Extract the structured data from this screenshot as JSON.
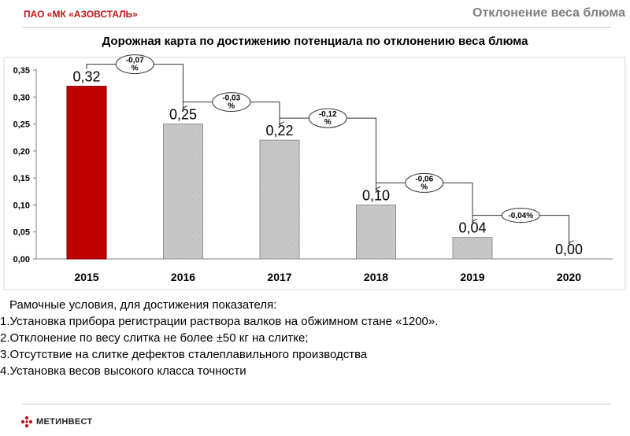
{
  "header": {
    "company": "ПАО «МК «АЗОВСТАЛЬ»",
    "title": "Отклонение веса блюма"
  },
  "chart_data": {
    "type": "bar",
    "title": "Дорожная карта по достижению потенциала по отклонению веса блюма",
    "categories": [
      "2015",
      "2016",
      "2017",
      "2018",
      "2019",
      "2020"
    ],
    "values": [
      0.32,
      0.25,
      0.22,
      0.1,
      0.04,
      0.0
    ],
    "data_labels": [
      "0,32",
      "0,25",
      "0,22",
      "0,10",
      "0,04",
      "0,00"
    ],
    "bar_colors": [
      "#c00000",
      "#c8c8c8",
      "#c8c8c8",
      "#c8c8c8",
      "#c8c8c8",
      "#c8c8c8"
    ],
    "yticks": [
      "0,00",
      "0,05",
      "0,10",
      "0,15",
      "0,20",
      "0,25",
      "0,30",
      "0,35"
    ],
    "ylim": [
      0,
      0.35
    ],
    "grid": false,
    "legend": "none",
    "step_labels": [
      {
        "from": "2015",
        "to": "2016",
        "value": -0.07,
        "text": "-0,07 %"
      },
      {
        "from": "2016",
        "to": "2017",
        "value": -0.03,
        "text": "-0,03 %"
      },
      {
        "from": "2017",
        "to": "2018",
        "value": -0.12,
        "text": "-0,12 %"
      },
      {
        "from": "2018",
        "to": "2019",
        "value": -0.06,
        "text": "-0,06 %"
      },
      {
        "from": "2019",
        "to": "2020",
        "value": -0.04,
        "text": "-0,04%"
      }
    ]
  },
  "conditions": {
    "lead": "Рамочные условия, для достижения показателя:",
    "items": [
      "1.Установка прибора регистрации раствора валков на обжимном стане «1200».",
      "2.Отклонение по весу слитка не более ±50 кг на слитке;",
      "3.Отсутствие на слитке дефектов сталеплавильного производства",
      "4.Установка весов высокого класса точности"
    ]
  },
  "footer": {
    "logo_text": "МЕТИНВЕСТ"
  },
  "colors": {
    "brand_red": "#c0151b",
    "highlight_bar": "#c00000",
    "bar": "#c8c8c8",
    "header_gray": "#7f7f7f"
  }
}
